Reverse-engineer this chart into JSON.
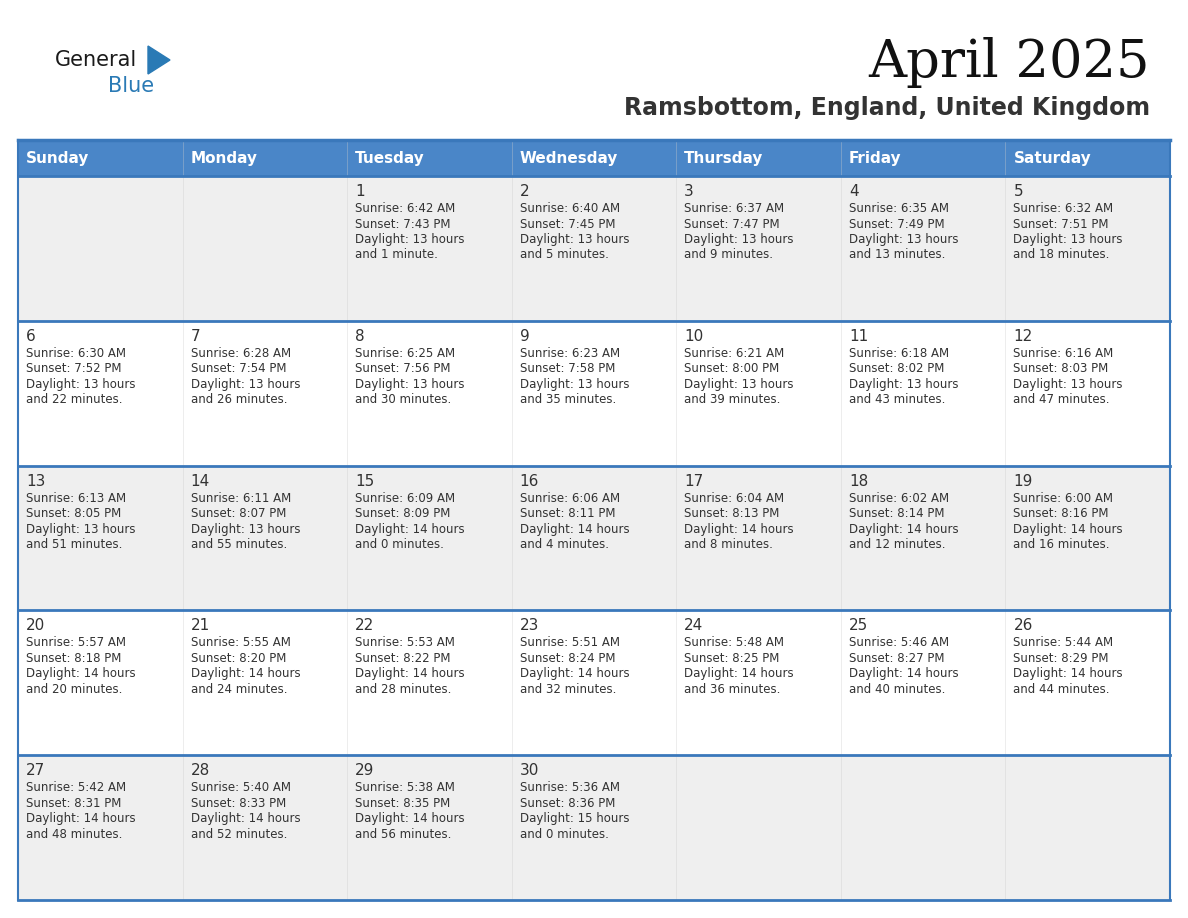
{
  "title": "April 2025",
  "subtitle": "Ramsbottom, England, United Kingdom",
  "header_bg_color": "#4a86c8",
  "header_text_color": "#ffffff",
  "day_names": [
    "Sunday",
    "Monday",
    "Tuesday",
    "Wednesday",
    "Thursday",
    "Friday",
    "Saturday"
  ],
  "row_bg_even": "#efefef",
  "row_bg_odd": "#ffffff",
  "cell_text_color": "#333333",
  "grid_color": "#3a78bb",
  "logo_color_general": "#1a1a1a",
  "logo_color_blue": "#2a7ab5",
  "title_color": "#111111",
  "subtitle_color": "#333333",
  "days": [
    {
      "date": 1,
      "col": 2,
      "row": 0,
      "sunrise": "6:42 AM",
      "sunset": "7:43 PM",
      "daylight": "13 hours and 1 minute."
    },
    {
      "date": 2,
      "col": 3,
      "row": 0,
      "sunrise": "6:40 AM",
      "sunset": "7:45 PM",
      "daylight": "13 hours and 5 minutes."
    },
    {
      "date": 3,
      "col": 4,
      "row": 0,
      "sunrise": "6:37 AM",
      "sunset": "7:47 PM",
      "daylight": "13 hours and 9 minutes."
    },
    {
      "date": 4,
      "col": 5,
      "row": 0,
      "sunrise": "6:35 AM",
      "sunset": "7:49 PM",
      "daylight": "13 hours and 13 minutes."
    },
    {
      "date": 5,
      "col": 6,
      "row": 0,
      "sunrise": "6:32 AM",
      "sunset": "7:51 PM",
      "daylight": "13 hours and 18 minutes."
    },
    {
      "date": 6,
      "col": 0,
      "row": 1,
      "sunrise": "6:30 AM",
      "sunset": "7:52 PM",
      "daylight": "13 hours and 22 minutes."
    },
    {
      "date": 7,
      "col": 1,
      "row": 1,
      "sunrise": "6:28 AM",
      "sunset": "7:54 PM",
      "daylight": "13 hours and 26 minutes."
    },
    {
      "date": 8,
      "col": 2,
      "row": 1,
      "sunrise": "6:25 AM",
      "sunset": "7:56 PM",
      "daylight": "13 hours and 30 minutes."
    },
    {
      "date": 9,
      "col": 3,
      "row": 1,
      "sunrise": "6:23 AM",
      "sunset": "7:58 PM",
      "daylight": "13 hours and 35 minutes."
    },
    {
      "date": 10,
      "col": 4,
      "row": 1,
      "sunrise": "6:21 AM",
      "sunset": "8:00 PM",
      "daylight": "13 hours and 39 minutes."
    },
    {
      "date": 11,
      "col": 5,
      "row": 1,
      "sunrise": "6:18 AM",
      "sunset": "8:02 PM",
      "daylight": "13 hours and 43 minutes."
    },
    {
      "date": 12,
      "col": 6,
      "row": 1,
      "sunrise": "6:16 AM",
      "sunset": "8:03 PM",
      "daylight": "13 hours and 47 minutes."
    },
    {
      "date": 13,
      "col": 0,
      "row": 2,
      "sunrise": "6:13 AM",
      "sunset": "8:05 PM",
      "daylight": "13 hours and 51 minutes."
    },
    {
      "date": 14,
      "col": 1,
      "row": 2,
      "sunrise": "6:11 AM",
      "sunset": "8:07 PM",
      "daylight": "13 hours and 55 minutes."
    },
    {
      "date": 15,
      "col": 2,
      "row": 2,
      "sunrise": "6:09 AM",
      "sunset": "8:09 PM",
      "daylight": "14 hours and 0 minutes."
    },
    {
      "date": 16,
      "col": 3,
      "row": 2,
      "sunrise": "6:06 AM",
      "sunset": "8:11 PM",
      "daylight": "14 hours and 4 minutes."
    },
    {
      "date": 17,
      "col": 4,
      "row": 2,
      "sunrise": "6:04 AM",
      "sunset": "8:13 PM",
      "daylight": "14 hours and 8 minutes."
    },
    {
      "date": 18,
      "col": 5,
      "row": 2,
      "sunrise": "6:02 AM",
      "sunset": "8:14 PM",
      "daylight": "14 hours and 12 minutes."
    },
    {
      "date": 19,
      "col": 6,
      "row": 2,
      "sunrise": "6:00 AM",
      "sunset": "8:16 PM",
      "daylight": "14 hours and 16 minutes."
    },
    {
      "date": 20,
      "col": 0,
      "row": 3,
      "sunrise": "5:57 AM",
      "sunset": "8:18 PM",
      "daylight": "14 hours and 20 minutes."
    },
    {
      "date": 21,
      "col": 1,
      "row": 3,
      "sunrise": "5:55 AM",
      "sunset": "8:20 PM",
      "daylight": "14 hours and 24 minutes."
    },
    {
      "date": 22,
      "col": 2,
      "row": 3,
      "sunrise": "5:53 AM",
      "sunset": "8:22 PM",
      "daylight": "14 hours and 28 minutes."
    },
    {
      "date": 23,
      "col": 3,
      "row": 3,
      "sunrise": "5:51 AM",
      "sunset": "8:24 PM",
      "daylight": "14 hours and 32 minutes."
    },
    {
      "date": 24,
      "col": 4,
      "row": 3,
      "sunrise": "5:48 AM",
      "sunset": "8:25 PM",
      "daylight": "14 hours and 36 minutes."
    },
    {
      "date": 25,
      "col": 5,
      "row": 3,
      "sunrise": "5:46 AM",
      "sunset": "8:27 PM",
      "daylight": "14 hours and 40 minutes."
    },
    {
      "date": 26,
      "col": 6,
      "row": 3,
      "sunrise": "5:44 AM",
      "sunset": "8:29 PM",
      "daylight": "14 hours and 44 minutes."
    },
    {
      "date": 27,
      "col": 0,
      "row": 4,
      "sunrise": "5:42 AM",
      "sunset": "8:31 PM",
      "daylight": "14 hours and 48 minutes."
    },
    {
      "date": 28,
      "col": 1,
      "row": 4,
      "sunrise": "5:40 AM",
      "sunset": "8:33 PM",
      "daylight": "14 hours and 52 minutes."
    },
    {
      "date": 29,
      "col": 2,
      "row": 4,
      "sunrise": "5:38 AM",
      "sunset": "8:35 PM",
      "daylight": "14 hours and 56 minutes."
    },
    {
      "date": 30,
      "col": 3,
      "row": 4,
      "sunrise": "5:36 AM",
      "sunset": "8:36 PM",
      "daylight": "15 hours and 0 minutes."
    }
  ]
}
